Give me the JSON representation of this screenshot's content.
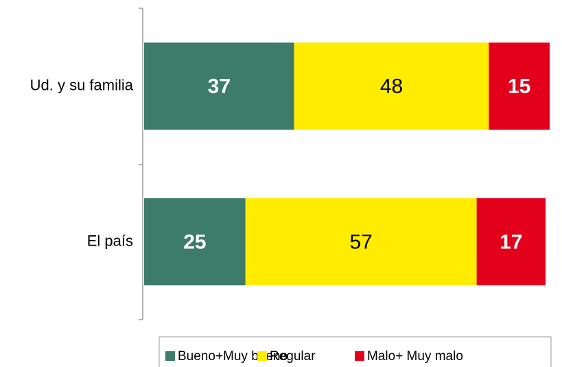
{
  "chart_data": {
    "type": "stacked-bar-horizontal",
    "categories": [
      "Ud. y su familia",
      "El país"
    ],
    "series": [
      {
        "name": "Bueno+Muy bueno",
        "color": "#3d7b6b",
        "label_color": "#ffffff",
        "label_bold": true,
        "values": [
          37,
          25
        ]
      },
      {
        "name": "Regular",
        "color": "#ffec00",
        "label_color": "#000000",
        "label_bold": false,
        "values": [
          48,
          57
        ]
      },
      {
        "name": "Malo+ Muy malo",
        "color": "#e3001b",
        "label_color": "#ffffff",
        "label_bold": true,
        "values": [
          15,
          17
        ]
      }
    ],
    "legend": "bottom"
  }
}
